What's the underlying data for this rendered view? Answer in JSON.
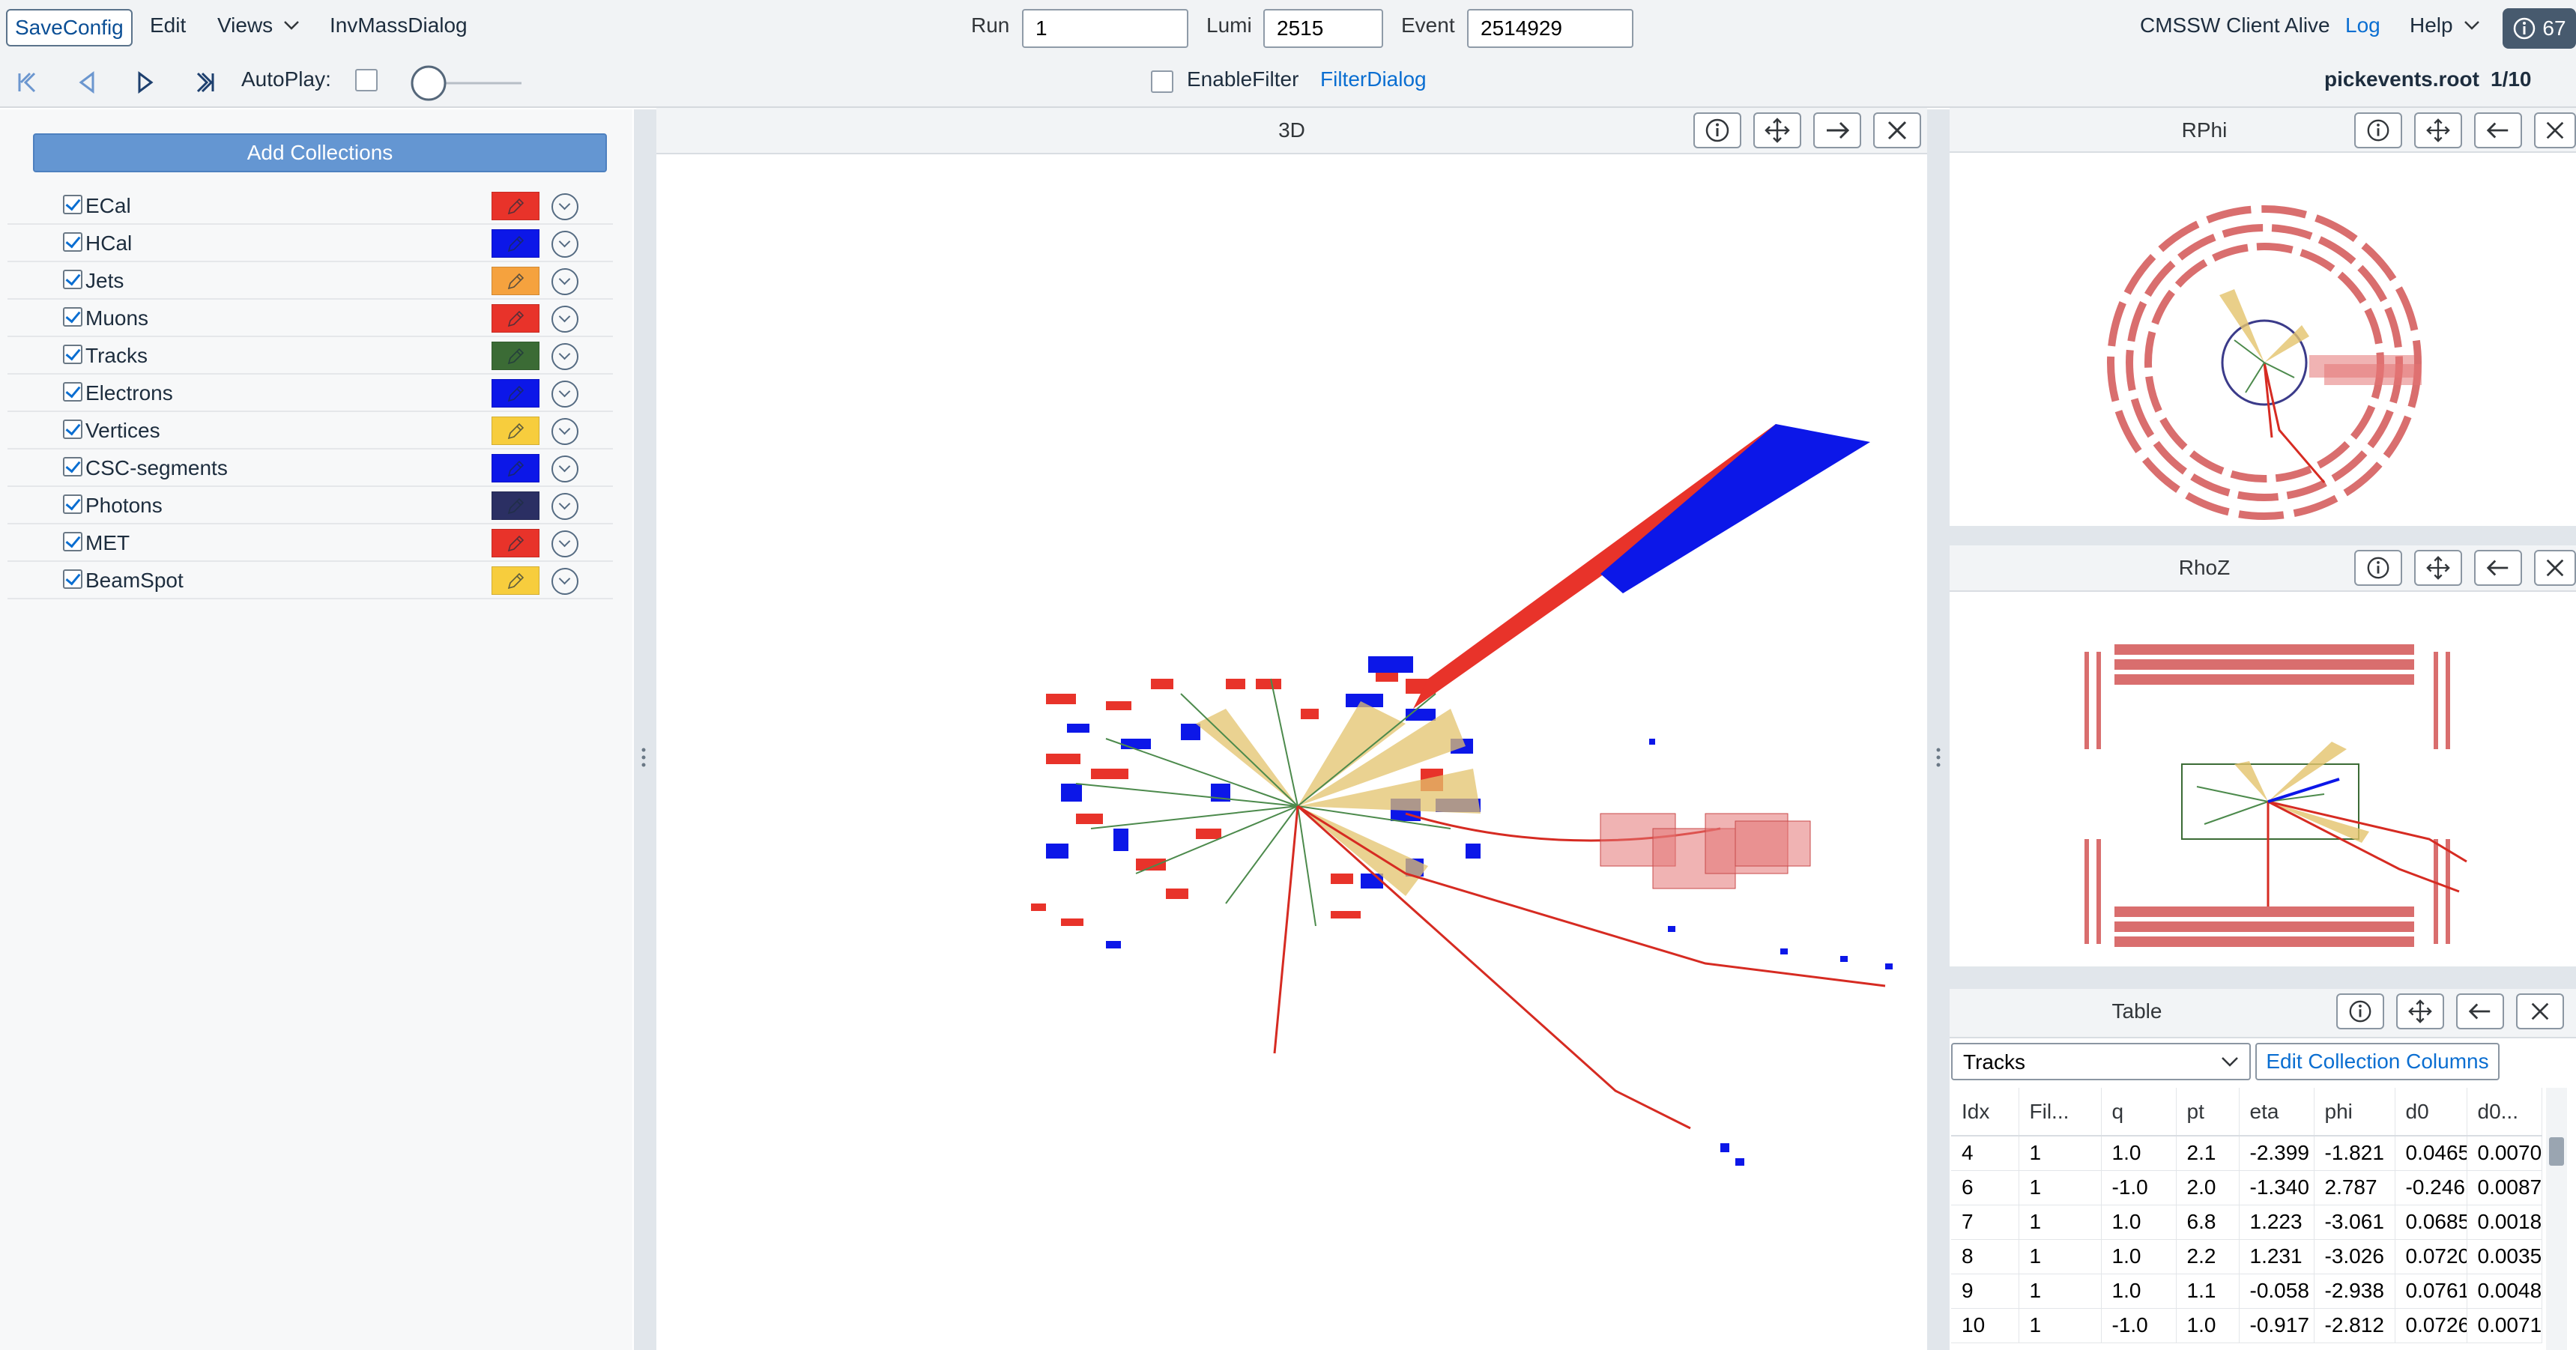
{
  "menu": {
    "save_config": "SaveConfig",
    "edit": "Edit",
    "views": "Views",
    "inv_mass": "InvMassDialog",
    "client_status": "CMSSW Client Alive",
    "log": "Log",
    "help": "Help",
    "badge_count": "67"
  },
  "event": {
    "run_label": "Run",
    "run_value": "1",
    "lumi_label": "Lumi",
    "lumi_value": "2515",
    "event_label": "Event",
    "event_value": "2514929"
  },
  "toolbar": {
    "autoplay": "AutoPlay:",
    "enable_filter": "EnableFilter",
    "filter_dialog": "FilterDialog",
    "file_name": "pickevents.root",
    "file_index": "1/10"
  },
  "left": {
    "add_collections": "Add Collections",
    "collections": [
      {
        "name": "ECal",
        "color": "#e8332a"
      },
      {
        "name": "HCal",
        "color": "#0c17e8"
      },
      {
        "name": "Jets",
        "color": "#f5a23e"
      },
      {
        "name": "Muons",
        "color": "#e8332a"
      },
      {
        "name": "Tracks",
        "color": "#3b6b35"
      },
      {
        "name": "Electrons",
        "color": "#0c17e8"
      },
      {
        "name": "Vertices",
        "color": "#f7cd3d"
      },
      {
        "name": "CSC-segments",
        "color": "#0c17e8"
      },
      {
        "name": "Photons",
        "color": "#2b2f63"
      },
      {
        "name": "MET",
        "color": "#e8332a"
      },
      {
        "name": "BeamSpot",
        "color": "#f7cd3d"
      }
    ]
  },
  "views": {
    "main_title": "3D",
    "rphi_title": "RPhi",
    "rhoz_title": "RhoZ",
    "table_title": "Table"
  },
  "table": {
    "collection": "Tracks",
    "edit_columns": "Edit Collection Columns",
    "columns": [
      "Idx",
      "Fil...",
      "q",
      "pt",
      "eta",
      "phi",
      "d0",
      "d0..."
    ],
    "rows": [
      [
        "4",
        "1",
        "1.0",
        "2.1",
        "-2.399",
        "-1.821",
        "0.0465",
        "0.0070"
      ],
      [
        "6",
        "1",
        "-1.0",
        "2.0",
        "-1.340",
        "2.787",
        "-0.246",
        "0.0087"
      ],
      [
        "7",
        "1",
        "1.0",
        "6.8",
        "1.223",
        "-3.061",
        "0.0685",
        "0.0018"
      ],
      [
        "8",
        "1",
        "1.0",
        "2.2",
        "1.231",
        "-3.026",
        "0.0720",
        "0.0035"
      ],
      [
        "9",
        "1",
        "1.0",
        "1.1",
        "-0.058",
        "-2.938",
        "0.0761",
        "0.0048"
      ],
      [
        "10",
        "1",
        "-1.0",
        "1.0",
        "-0.917",
        "-2.812",
        "0.0726",
        "0.0071"
      ]
    ]
  }
}
